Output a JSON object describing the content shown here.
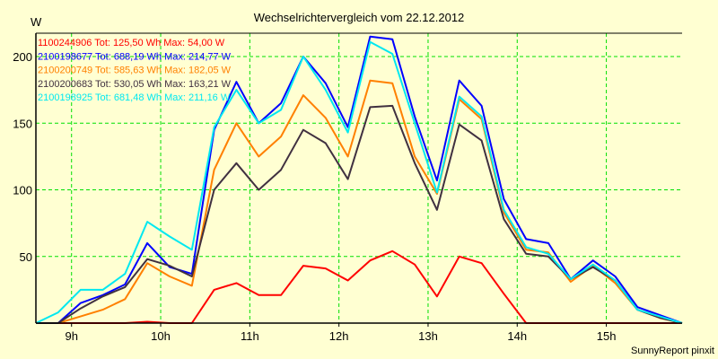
{
  "chart_data": {
    "type": "line",
    "title": "Wechselrichtervergleich vom 22.12.2012",
    "ylabel": "W",
    "xlabel": "",
    "credit": "SunnyReport pinxit",
    "ylim": [
      0,
      200
    ],
    "xlim": [
      8.6,
      15.85
    ],
    "yticks": [
      50,
      100,
      150,
      200
    ],
    "xticks": [
      9,
      10,
      11,
      12,
      13,
      14,
      15
    ],
    "xtick_labels": [
      "9h",
      "10h",
      "11h",
      "12h",
      "13h",
      "14h",
      "15h"
    ],
    "grid": true,
    "legend_position": "top-left",
    "x": [
      8.6,
      8.85,
      9.1,
      9.35,
      9.6,
      9.85,
      10.1,
      10.35,
      10.6,
      10.85,
      11.1,
      11.35,
      11.6,
      11.85,
      12.1,
      12.35,
      12.6,
      12.85,
      13.1,
      13.35,
      13.6,
      13.85,
      14.1,
      14.35,
      14.6,
      14.85,
      15.1,
      15.35,
      15.6,
      15.85
    ],
    "series": [
      {
        "name": "1100244906",
        "legend": "1100244906 Tot: 125,50 Wh Max: 54,00 W",
        "color": "#ff0000",
        "values": [
          0,
          0,
          0,
          0,
          0,
          1,
          0,
          0,
          25,
          30,
          21,
          21,
          43,
          41,
          32,
          47,
          54,
          44,
          20,
          50,
          45,
          22,
          0,
          0,
          0,
          0,
          0,
          0,
          0,
          0
        ]
      },
      {
        "name": "2100198677",
        "legend": "2100198677 Tot: 688,19 Wh Max: 214,77 W",
        "color": "#0000ff",
        "values": [
          0,
          0,
          15,
          21,
          29,
          60,
          42,
          37,
          145,
          181,
          150,
          165,
          200,
          180,
          147,
          215,
          213,
          155,
          107,
          182,
          163,
          93,
          63,
          60,
          33,
          47,
          35,
          12,
          6,
          0
        ]
      },
      {
        "name": "2100200749",
        "legend": "2100200749 Tot: 585,63 Wh Max: 182,05 W",
        "color": "#ff8000",
        "values": [
          0,
          0,
          5,
          10,
          18,
          45,
          35,
          28,
          115,
          150,
          125,
          140,
          171,
          154,
          125,
          182,
          180,
          125,
          97,
          168,
          153,
          83,
          55,
          53,
          31,
          43,
          30,
          10,
          4,
          0
        ]
      },
      {
        "name": "2100200683",
        "legend": "2100200683 Tot: 530,05 Wh Max: 163,21 W",
        "color": "#403040",
        "values": [
          0,
          0,
          11,
          20,
          27,
          48,
          43,
          35,
          100,
          120,
          100,
          115,
          145,
          135,
          108,
          162,
          163,
          120,
          85,
          149,
          137,
          78,
          52,
          50,
          33,
          42,
          32,
          10,
          4,
          0
        ]
      },
      {
        "name": "2100198925",
        "legend": "2100198925 Tot: 681,48 Wh Max: 211,16 W",
        "color": "#00e8f0",
        "values": [
          0,
          8,
          25,
          25,
          37,
          76,
          65,
          55,
          147,
          175,
          150,
          160,
          200,
          175,
          143,
          211,
          202,
          150,
          98,
          170,
          155,
          85,
          57,
          52,
          33,
          44,
          32,
          10,
          5,
          0
        ]
      }
    ]
  }
}
